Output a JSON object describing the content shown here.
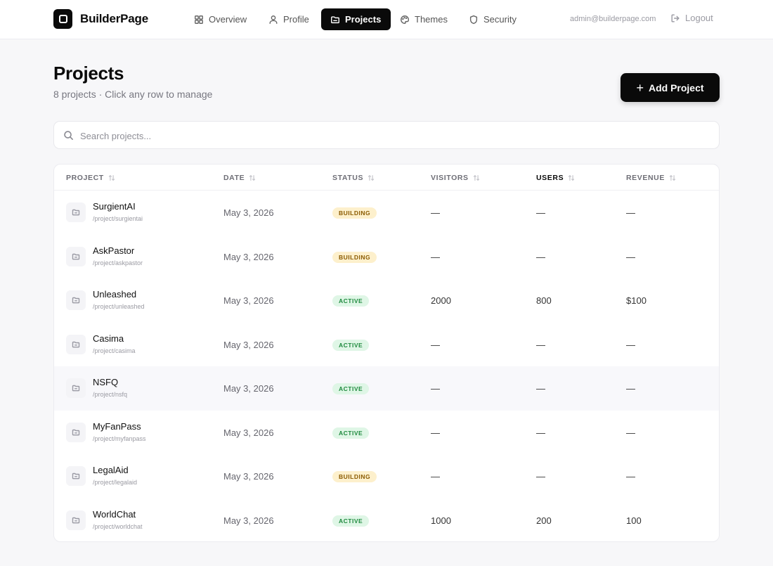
{
  "app": {
    "brand_name": "BuilderPage",
    "user_email": "admin@builderpage.com",
    "logout_label": "Logout"
  },
  "nav": {
    "items": [
      {
        "label": "Overview",
        "icon": "grid-icon"
      },
      {
        "label": "Profile",
        "icon": "user-icon"
      },
      {
        "label": "Projects",
        "icon": "folder-icon",
        "active": true
      },
      {
        "label": "Themes",
        "icon": "palette-icon"
      },
      {
        "label": "Security",
        "icon": "shield-icon"
      }
    ]
  },
  "header": {
    "title": "Projects",
    "subtitle": "8 projects · Click any row to manage",
    "add_button_label": "Add Project"
  },
  "search": {
    "placeholder": "Search projects..."
  },
  "table": {
    "columns": [
      "PROJECT",
      "DATE",
      "STATUS",
      "VISITORS",
      "USERS",
      "REVENUE"
    ],
    "sorted_column": "USERS",
    "rows": [
      {
        "name": "SurgientAI",
        "path": "/project/surgientai",
        "date": "May 3, 2026",
        "status": "BUILDING",
        "visitors": "—",
        "users": "—",
        "revenue": "—"
      },
      {
        "name": "AskPastor",
        "path": "/project/askpastor",
        "date": "May 3, 2026",
        "status": "BUILDING",
        "visitors": "—",
        "users": "—",
        "revenue": "—"
      },
      {
        "name": "Unleashed",
        "path": "/project/unleashed",
        "date": "May 3, 2026",
        "status": "ACTIVE",
        "visitors": "2000",
        "users": "800",
        "revenue": "$100"
      },
      {
        "name": "Casima",
        "path": "/project/casima",
        "date": "May 3, 2026",
        "status": "ACTIVE",
        "visitors": "—",
        "users": "—",
        "revenue": "—"
      },
      {
        "name": "NSFQ",
        "path": "/project/nsfq",
        "date": "May 3, 2026",
        "status": "ACTIVE",
        "visitors": "—",
        "users": "—",
        "revenue": "—"
      },
      {
        "name": "MyFanPass",
        "path": "/project/myfanpass",
        "date": "May 3, 2026",
        "status": "ACTIVE",
        "visitors": "—",
        "users": "—",
        "revenue": "—"
      },
      {
        "name": "LegalAid",
        "path": "/project/legalaid",
        "date": "May 3, 2026",
        "status": "BUILDING",
        "visitors": "—",
        "users": "—",
        "revenue": "—"
      },
      {
        "name": "WorldChat",
        "path": "/project/worldchat",
        "date": "May 3, 2026",
        "status": "ACTIVE",
        "visitors": "1000",
        "users": "200",
        "revenue": "100"
      }
    ]
  },
  "colors": {
    "accent": "#0a0a0a",
    "building_badge_bg": "#fdf0cc",
    "building_badge_text": "#8a5a00",
    "active_badge_bg": "#dff6e6",
    "active_badge_text": "#1f8a3e"
  }
}
